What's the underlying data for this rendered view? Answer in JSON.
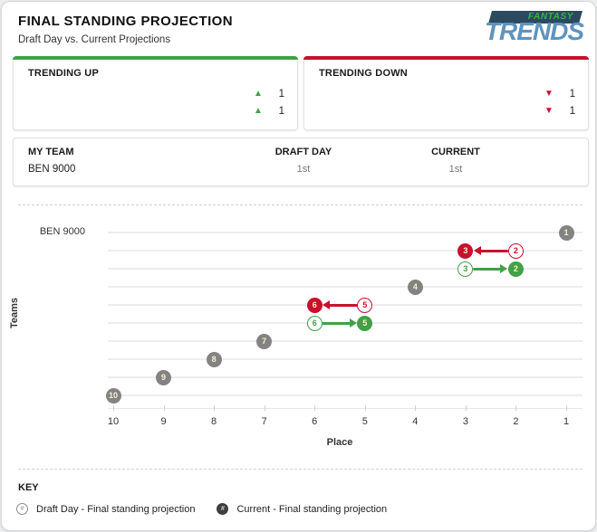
{
  "header": {
    "title": "FINAL STANDING PROJECTION",
    "subtitle": "Draft Day vs. Current Projections",
    "logo_top": "FANTASY",
    "logo_bottom": "TRENDS"
  },
  "icons": {
    "up_arrow": "▲",
    "down_arrow": "▼",
    "hash": "#"
  },
  "colors": {
    "trend_up_green": "#43a047",
    "trend_down_red": "#c8102e",
    "neutral_gray": "#838383",
    "logo_navy": "#2b4a60",
    "logo_green": "#38b43c",
    "logo_blue": "#5f93bd",
    "marker_number_cream": "#f9f1c6"
  },
  "trending_up": {
    "title": "TRENDING UP",
    "rows": [
      {
        "team": "",
        "value": "1"
      },
      {
        "team": "",
        "value": "1"
      }
    ]
  },
  "trending_down": {
    "title": "TRENDING DOWN",
    "rows": [
      {
        "team": "",
        "value": "1"
      },
      {
        "team": "",
        "value": "1"
      }
    ]
  },
  "my_team_table": {
    "col_my_team": "MY TEAM",
    "col_draft_day": "DRAFT DAY",
    "col_current": "CURRENT",
    "row": {
      "team": "BEN 9000",
      "draft_day": "1st",
      "current": "1st"
    }
  },
  "chart_data": {
    "type": "scatter",
    "title": "",
    "xlabel": "Place",
    "ylabel": "Teams",
    "x_ticks": [
      10,
      9,
      8,
      7,
      6,
      5,
      4,
      3,
      2,
      1
    ],
    "x_axis_reversed": true,
    "grid": true,
    "series": [
      {
        "name": "Draft Day - Final standing projection",
        "marker": "outlined-circle"
      },
      {
        "name": "Current - Final standing projection",
        "marker": "filled-circle"
      }
    ],
    "rows": [
      {
        "row": 1,
        "label": "BEN 9000",
        "draft_day": 1,
        "current": 1,
        "trend": "none"
      },
      {
        "row": 2,
        "label": "",
        "draft_day": 2,
        "current": 3,
        "trend": "down"
      },
      {
        "row": 3,
        "label": "",
        "draft_day": 3,
        "current": 2,
        "trend": "up"
      },
      {
        "row": 4,
        "label": "",
        "draft_day": 4,
        "current": 4,
        "trend": "none"
      },
      {
        "row": 5,
        "label": "",
        "draft_day": 5,
        "current": 6,
        "trend": "down"
      },
      {
        "row": 6,
        "label": "",
        "draft_day": 6,
        "current": 5,
        "trend": "up"
      },
      {
        "row": 7,
        "label": "",
        "draft_day": 7,
        "current": 7,
        "trend": "none"
      },
      {
        "row": 8,
        "label": "",
        "draft_day": 8,
        "current": 8,
        "trend": "none"
      },
      {
        "row": 9,
        "label": "",
        "draft_day": 9,
        "current": 9,
        "trend": "none"
      },
      {
        "row": 10,
        "label": "",
        "draft_day": 10,
        "current": 10,
        "trend": "none"
      }
    ]
  },
  "key": {
    "title": "KEY",
    "items": [
      {
        "icon": "draftday-marker-icon",
        "label": "Draft Day - Final standing projection"
      },
      {
        "icon": "current-marker-icon",
        "label": "Current - Final standing projection"
      }
    ]
  }
}
